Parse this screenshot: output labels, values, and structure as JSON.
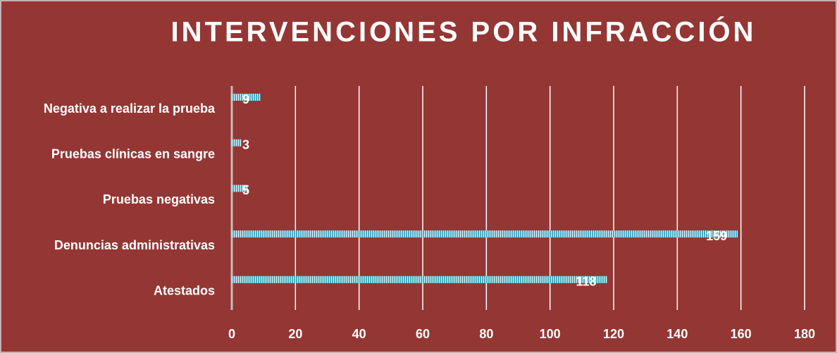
{
  "chart_data": {
    "type": "barh",
    "title": "INTERVENCIONES POR INFRACCIÓN",
    "categories": [
      "Negativa a realizar la prueba",
      "Pruebas clínicas en sangre",
      "Pruebas negativas",
      "Denuncias administrativas",
      "Atestados"
    ],
    "values": [
      9,
      3,
      5,
      159,
      118
    ],
    "color": "#4bacc6",
    "xlim": [
      0,
      180
    ],
    "xticks": [
      0,
      20,
      40,
      60,
      80,
      100,
      120,
      140,
      160,
      180
    ],
    "grid": true
  }
}
